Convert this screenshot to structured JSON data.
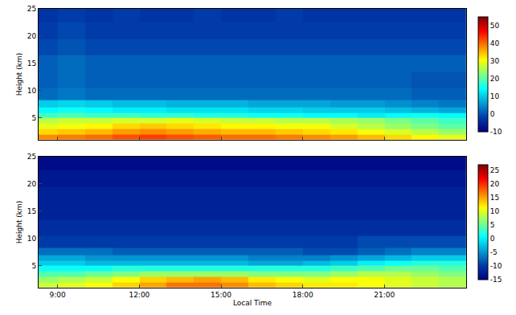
{
  "chart_data": [
    {
      "type": "heatmap",
      "y_label": "Height (km)",
      "x": [
        8.5,
        9.5,
        10.5,
        11.5,
        12.5,
        13.5,
        14.5,
        15.5,
        16.5,
        17.5,
        18.5,
        19.5,
        20.5,
        21.5,
        22.5,
        23.5
      ],
      "y": [
        1.5,
        2.5,
        3.5,
        4.5,
        5.5,
        6.5,
        7.5,
        9,
        12,
        15,
        18,
        21,
        24
      ],
      "z": [
        [
          38,
          39,
          40,
          42,
          43,
          42,
          41,
          40,
          40,
          39,
          38,
          37,
          35,
          33,
          31,
          29
        ],
        [
          33,
          34,
          35,
          37,
          38,
          37,
          36,
          35,
          35,
          34,
          33,
          32,
          30,
          28,
          26,
          24
        ],
        [
          29,
          30,
          31,
          33,
          34,
          33,
          32,
          31,
          31,
          30,
          30,
          28,
          26,
          24,
          22,
          20
        ],
        [
          26,
          27,
          27,
          28,
          28,
          29,
          28,
          27,
          27,
          26,
          26,
          25,
          24,
          22,
          20,
          18
        ],
        [
          18,
          19,
          18,
          18,
          17,
          17,
          16,
          16,
          15,
          15,
          14,
          14,
          13,
          14,
          15,
          14
        ],
        [
          14,
          15,
          14,
          13,
          13,
          12,
          12,
          12,
          11,
          11,
          10,
          10,
          10,
          9,
          8,
          7
        ],
        [
          10,
          11,
          10,
          9,
          9,
          8,
          8,
          8,
          7,
          7,
          7,
          6,
          6,
          5,
          4,
          3
        ],
        [
          2,
          3,
          2,
          2,
          2,
          2,
          2,
          2,
          2,
          2,
          2,
          2,
          2,
          2,
          1,
          1
        ],
        [
          1,
          2,
          1,
          1,
          1,
          1,
          1,
          1,
          1,
          1,
          1,
          1,
          1,
          1,
          0,
          0
        ],
        [
          1,
          2,
          1,
          1,
          1,
          1,
          1,
          1,
          1,
          1,
          1,
          1,
          1,
          1,
          1,
          1
        ],
        [
          -1,
          0,
          -1,
          -1,
          -1,
          -1,
          -1,
          -1,
          -1,
          -1,
          -1,
          -1,
          -1,
          -1,
          -1,
          -1
        ],
        [
          -2,
          -1,
          -2,
          -2,
          -2,
          -2,
          -2,
          -2,
          -2,
          -2,
          -2,
          -2,
          -2,
          -2,
          -2,
          -2
        ],
        [
          -3,
          -2,
          -3,
          -2,
          -3,
          -3,
          -2,
          -3,
          -3,
          -2,
          -3,
          -3,
          -3,
          -3,
          -3,
          -3
        ]
      ],
      "xlim": [
        8.3,
        24
      ],
      "xticks": [
        {
          "value": 9,
          "label": "9:00"
        },
        {
          "value": 12,
          "label": "12:00"
        },
        {
          "value": 15,
          "label": "15:00"
        },
        {
          "value": 18,
          "label": "18:00"
        },
        {
          "value": 21,
          "label": "21:00"
        }
      ],
      "ylim": [
        1,
        25
      ],
      "yticks": [
        5,
        10,
        15,
        20,
        25
      ],
      "colorbar_range": [
        -10,
        55
      ],
      "colorbar_ticks": [
        -10,
        0,
        10,
        20,
        30,
        40,
        50
      ],
      "tick_labels": "y"
    },
    {
      "type": "heatmap",
      "x_label": "Local Time",
      "y_label": "Height (km)",
      "x": [
        8.5,
        9.5,
        10.5,
        11.5,
        12.5,
        13.5,
        14.5,
        15.5,
        16.5,
        17.5,
        18.5,
        19.5,
        20.5,
        21.5,
        22.5,
        23.5
      ],
      "y": [
        1.5,
        2.5,
        3.5,
        4.5,
        5.5,
        6.5,
        7.5,
        9,
        12,
        15,
        18,
        21,
        24
      ],
      "z": [
        [
          9,
          10,
          11,
          13,
          15,
          17,
          17,
          16,
          14,
          13,
          12,
          12,
          11,
          10,
          9,
          8
        ],
        [
          7,
          8,
          9,
          11,
          13,
          14,
          15,
          14,
          12,
          11,
          10,
          11,
          11,
          10,
          9,
          8
        ],
        [
          4,
          4,
          5,
          6,
          7,
          7,
          7,
          7,
          6,
          6,
          6,
          7,
          8,
          8,
          7,
          6
        ],
        [
          1,
          1,
          1,
          2,
          2,
          2,
          2,
          2,
          2,
          2,
          2,
          3,
          4,
          5,
          5,
          4
        ],
        [
          -2,
          -2,
          -3,
          -3,
          -3,
          -3,
          -3,
          -3,
          -4,
          -4,
          -3,
          -2,
          0,
          1,
          2,
          2
        ],
        [
          -4,
          -4,
          -5,
          -5,
          -5,
          -5,
          -5,
          -5,
          -6,
          -6,
          -6,
          -5,
          -4,
          -3,
          -2,
          -2
        ],
        [
          -7,
          -7,
          -7,
          -8,
          -8,
          -8,
          -8,
          -8,
          -8,
          -8,
          -9,
          -9,
          -8,
          -7,
          -6,
          -6
        ],
        [
          -10,
          -10,
          -10,
          -10,
          -10,
          -10,
          -10,
          -10,
          -10,
          -10,
          -10,
          -10,
          -9,
          -9,
          -9,
          -9
        ],
        [
          -11,
          -11,
          -11,
          -11,
          -11,
          -11,
          -11,
          -11,
          -11,
          -11,
          -11,
          -11,
          -11,
          -11,
          -11,
          -11
        ],
        [
          -12,
          -12,
          -12,
          -12,
          -12,
          -12,
          -12,
          -12,
          -12,
          -12,
          -12,
          -12,
          -12,
          -12,
          -12,
          -12
        ],
        [
          -12,
          -12,
          -12,
          -12,
          -12,
          -12,
          -12,
          -12,
          -12,
          -12,
          -12,
          -12,
          -12,
          -12,
          -12,
          -12
        ],
        [
          -13,
          -13,
          -13,
          -13,
          -13,
          -13,
          -13,
          -13,
          -13,
          -13,
          -13,
          -13,
          -13,
          -13,
          -13,
          -13
        ],
        [
          -14,
          -14,
          -14,
          -14,
          -14,
          -14,
          -14,
          -14,
          -14,
          -14,
          -14,
          -14,
          -14,
          -14,
          -14,
          -14
        ]
      ],
      "xlim": [
        8.3,
        24
      ],
      "xticks": [
        {
          "value": 9,
          "label": "9:00"
        },
        {
          "value": 12,
          "label": "12:00"
        },
        {
          "value": 15,
          "label": "15:00"
        },
        {
          "value": 18,
          "label": "18:00"
        },
        {
          "value": 21,
          "label": "21:00"
        }
      ],
      "ylim": [
        1,
        25
      ],
      "yticks": [
        5,
        10,
        15,
        20,
        25
      ],
      "colorbar_range": [
        -15,
        27
      ],
      "colorbar_ticks": [
        -15,
        -10,
        -5,
        0,
        5,
        10,
        15,
        20,
        25
      ]
    }
  ]
}
